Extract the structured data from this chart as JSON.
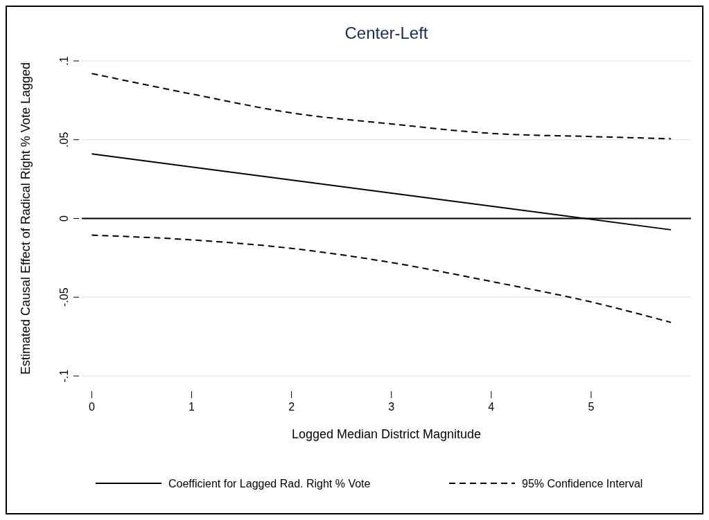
{
  "chart_data": {
    "type": "line",
    "title": "Center-Left",
    "xlabel": "Logged Median District Magnitude",
    "ylabel": "Estimated Causal Effect of Radical Right % Vote Lagged",
    "xlim": [
      -0.1,
      6.0
    ],
    "xticks": [
      0,
      1,
      2,
      3,
      4,
      5
    ],
    "ylim": [
      -0.1,
      0.1
    ],
    "yticks": [
      {
        "value": 0.1,
        "label": ".1"
      },
      {
        "value": 0.05,
        "label": ".05"
      },
      0,
      {
        "value": -0.05,
        "label": "-.05"
      },
      {
        "value": -0.1,
        "label": "-.1"
      }
    ],
    "grid": "y",
    "legend": "bottom",
    "ref_lines": [
      {
        "axis": "y",
        "value": 0,
        "color": "#000000",
        "line_style": "solid"
      }
    ],
    "series": [
      {
        "name": "Coefficient for Lagged Rad. Right % Vote",
        "color": "#000000",
        "line_style": "solid",
        "x": [
          0,
          5.8
        ],
        "values": [
          0.041,
          -0.0072
        ]
      },
      {
        "name": "95% Confidence Interval",
        "color": "#000000",
        "line_style": "dashed",
        "x": [
          0,
          1,
          2,
          3,
          4,
          5,
          5.8
        ],
        "values": [
          0.092,
          0.079,
          0.067,
          0.06,
          0.054,
          0.052,
          0.0506
        ]
      },
      {
        "color": "#000000",
        "line_style": "dashed",
        "x": [
          0,
          1,
          2,
          3,
          4,
          5,
          5.8
        ],
        "values": [
          -0.0106,
          -0.0136,
          -0.019,
          -0.028,
          -0.04,
          -0.053,
          -0.066
        ]
      }
    ]
  }
}
